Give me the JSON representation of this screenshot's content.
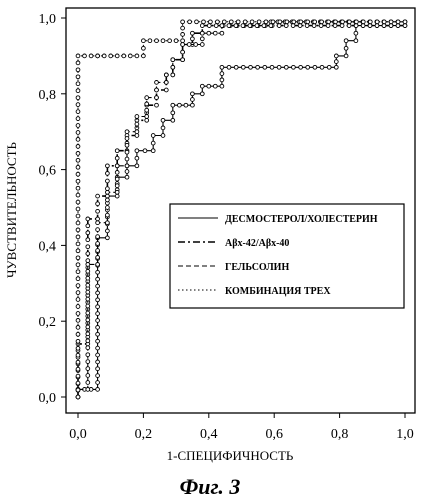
{
  "figure": {
    "caption": "Фиг. 3"
  },
  "chart_data": {
    "type": "line",
    "title": "",
    "xlabel": "1-СПЕЦИФИЧНОСТЬ",
    "ylabel": "ЧУВСТВИТЕЛЬНОСТЬ",
    "xlim": [
      0.0,
      1.0
    ],
    "ylim": [
      0.0,
      1.0
    ],
    "x_ticks": [
      "0,0",
      "0,2",
      "0,4",
      "0,6",
      "0,8",
      "1,0"
    ],
    "y_ticks": [
      "0,0",
      "0,2",
      "0,4",
      "0,6",
      "0,8",
      "1,0"
    ],
    "grid": false,
    "legend_position": "center-right",
    "series": [
      {
        "name": "ДЕСМОСТЕРОЛ/ХОЛЕСТЕРИН",
        "line_style": "solid",
        "points": [
          [
            0,
            0
          ],
          [
            0,
            0.02
          ],
          [
            0.06,
            0.02
          ],
          [
            0.06,
            0.42
          ],
          [
            0.09,
            0.42
          ],
          [
            0.09,
            0.53
          ],
          [
            0.12,
            0.53
          ],
          [
            0.12,
            0.58
          ],
          [
            0.15,
            0.58
          ],
          [
            0.15,
            0.61
          ],
          [
            0.18,
            0.61
          ],
          [
            0.18,
            0.65
          ],
          [
            0.23,
            0.65
          ],
          [
            0.23,
            0.69
          ],
          [
            0.26,
            0.69
          ],
          [
            0.26,
            0.73
          ],
          [
            0.29,
            0.73
          ],
          [
            0.29,
            0.77
          ],
          [
            0.35,
            0.77
          ],
          [
            0.35,
            0.8
          ],
          [
            0.38,
            0.8
          ],
          [
            0.38,
            0.82
          ],
          [
            0.44,
            0.82
          ],
          [
            0.44,
            0.87
          ],
          [
            0.79,
            0.87
          ],
          [
            0.79,
            0.9
          ],
          [
            0.82,
            0.9
          ],
          [
            0.82,
            0.94
          ],
          [
            0.85,
            0.94
          ],
          [
            0.85,
            0.98
          ],
          [
            1.0,
            0.98
          ]
        ]
      },
      {
        "name": "Aβx-42/Aβx-40",
        "line_style": "dashdot",
        "points": [
          [
            0,
            0
          ],
          [
            0,
            0.14
          ],
          [
            0.03,
            0.14
          ],
          [
            0.03,
            0.47
          ],
          [
            0.06,
            0.47
          ],
          [
            0.06,
            0.53
          ],
          [
            0.09,
            0.53
          ],
          [
            0.09,
            0.61
          ],
          [
            0.12,
            0.61
          ],
          [
            0.12,
            0.65
          ],
          [
            0.15,
            0.65
          ],
          [
            0.15,
            0.69
          ],
          [
            0.18,
            0.69
          ],
          [
            0.18,
            0.73
          ],
          [
            0.21,
            0.73
          ],
          [
            0.21,
            0.77
          ],
          [
            0.24,
            0.77
          ],
          [
            0.24,
            0.81
          ],
          [
            0.27,
            0.81
          ],
          [
            0.27,
            0.85
          ],
          [
            0.29,
            0.85
          ],
          [
            0.29,
            0.89
          ],
          [
            0.32,
            0.89
          ],
          [
            0.32,
            0.93
          ],
          [
            0.35,
            0.93
          ],
          [
            0.35,
            0.96
          ],
          [
            0.38,
            0.96
          ],
          [
            0.38,
            0.98
          ],
          [
            1.0,
            0.98
          ]
        ]
      },
      {
        "name": "ГЕЛЬСОЛИН",
        "line_style": "dashed",
        "points": [
          [
            0,
            0
          ],
          [
            0,
            0.02
          ],
          [
            0.03,
            0.02
          ],
          [
            0.03,
            0.35
          ],
          [
            0.06,
            0.35
          ],
          [
            0.06,
            0.46
          ],
          [
            0.09,
            0.46
          ],
          [
            0.09,
            0.54
          ],
          [
            0.12,
            0.54
          ],
          [
            0.12,
            0.61
          ],
          [
            0.15,
            0.61
          ],
          [
            0.15,
            0.7
          ],
          [
            0.18,
            0.7
          ],
          [
            0.18,
            0.74
          ],
          [
            0.21,
            0.74
          ],
          [
            0.21,
            0.79
          ],
          [
            0.24,
            0.79
          ],
          [
            0.24,
            0.83
          ],
          [
            0.27,
            0.83
          ],
          [
            0.27,
            0.85
          ],
          [
            0.29,
            0.85
          ],
          [
            0.29,
            0.89
          ],
          [
            0.32,
            0.89
          ],
          [
            0.32,
            0.93
          ],
          [
            0.38,
            0.93
          ],
          [
            0.38,
            0.96
          ],
          [
            0.44,
            0.96
          ],
          [
            0.44,
            0.98
          ],
          [
            0.59,
            0.98
          ],
          [
            0.59,
            0.99
          ],
          [
            1.0,
            0.99
          ]
        ]
      },
      {
        "name": "КОМБИНАЦИЯ ТРЕХ",
        "line_style": "dotted",
        "points": [
          [
            0,
            0
          ],
          [
            0,
            0.9
          ],
          [
            0.06,
            0.9
          ],
          [
            0.06,
            0.9
          ],
          [
            0.2,
            0.9
          ],
          [
            0.2,
            0.94
          ],
          [
            0.32,
            0.94
          ],
          [
            0.32,
            0.99
          ],
          [
            1.0,
            0.99
          ]
        ]
      }
    ]
  }
}
